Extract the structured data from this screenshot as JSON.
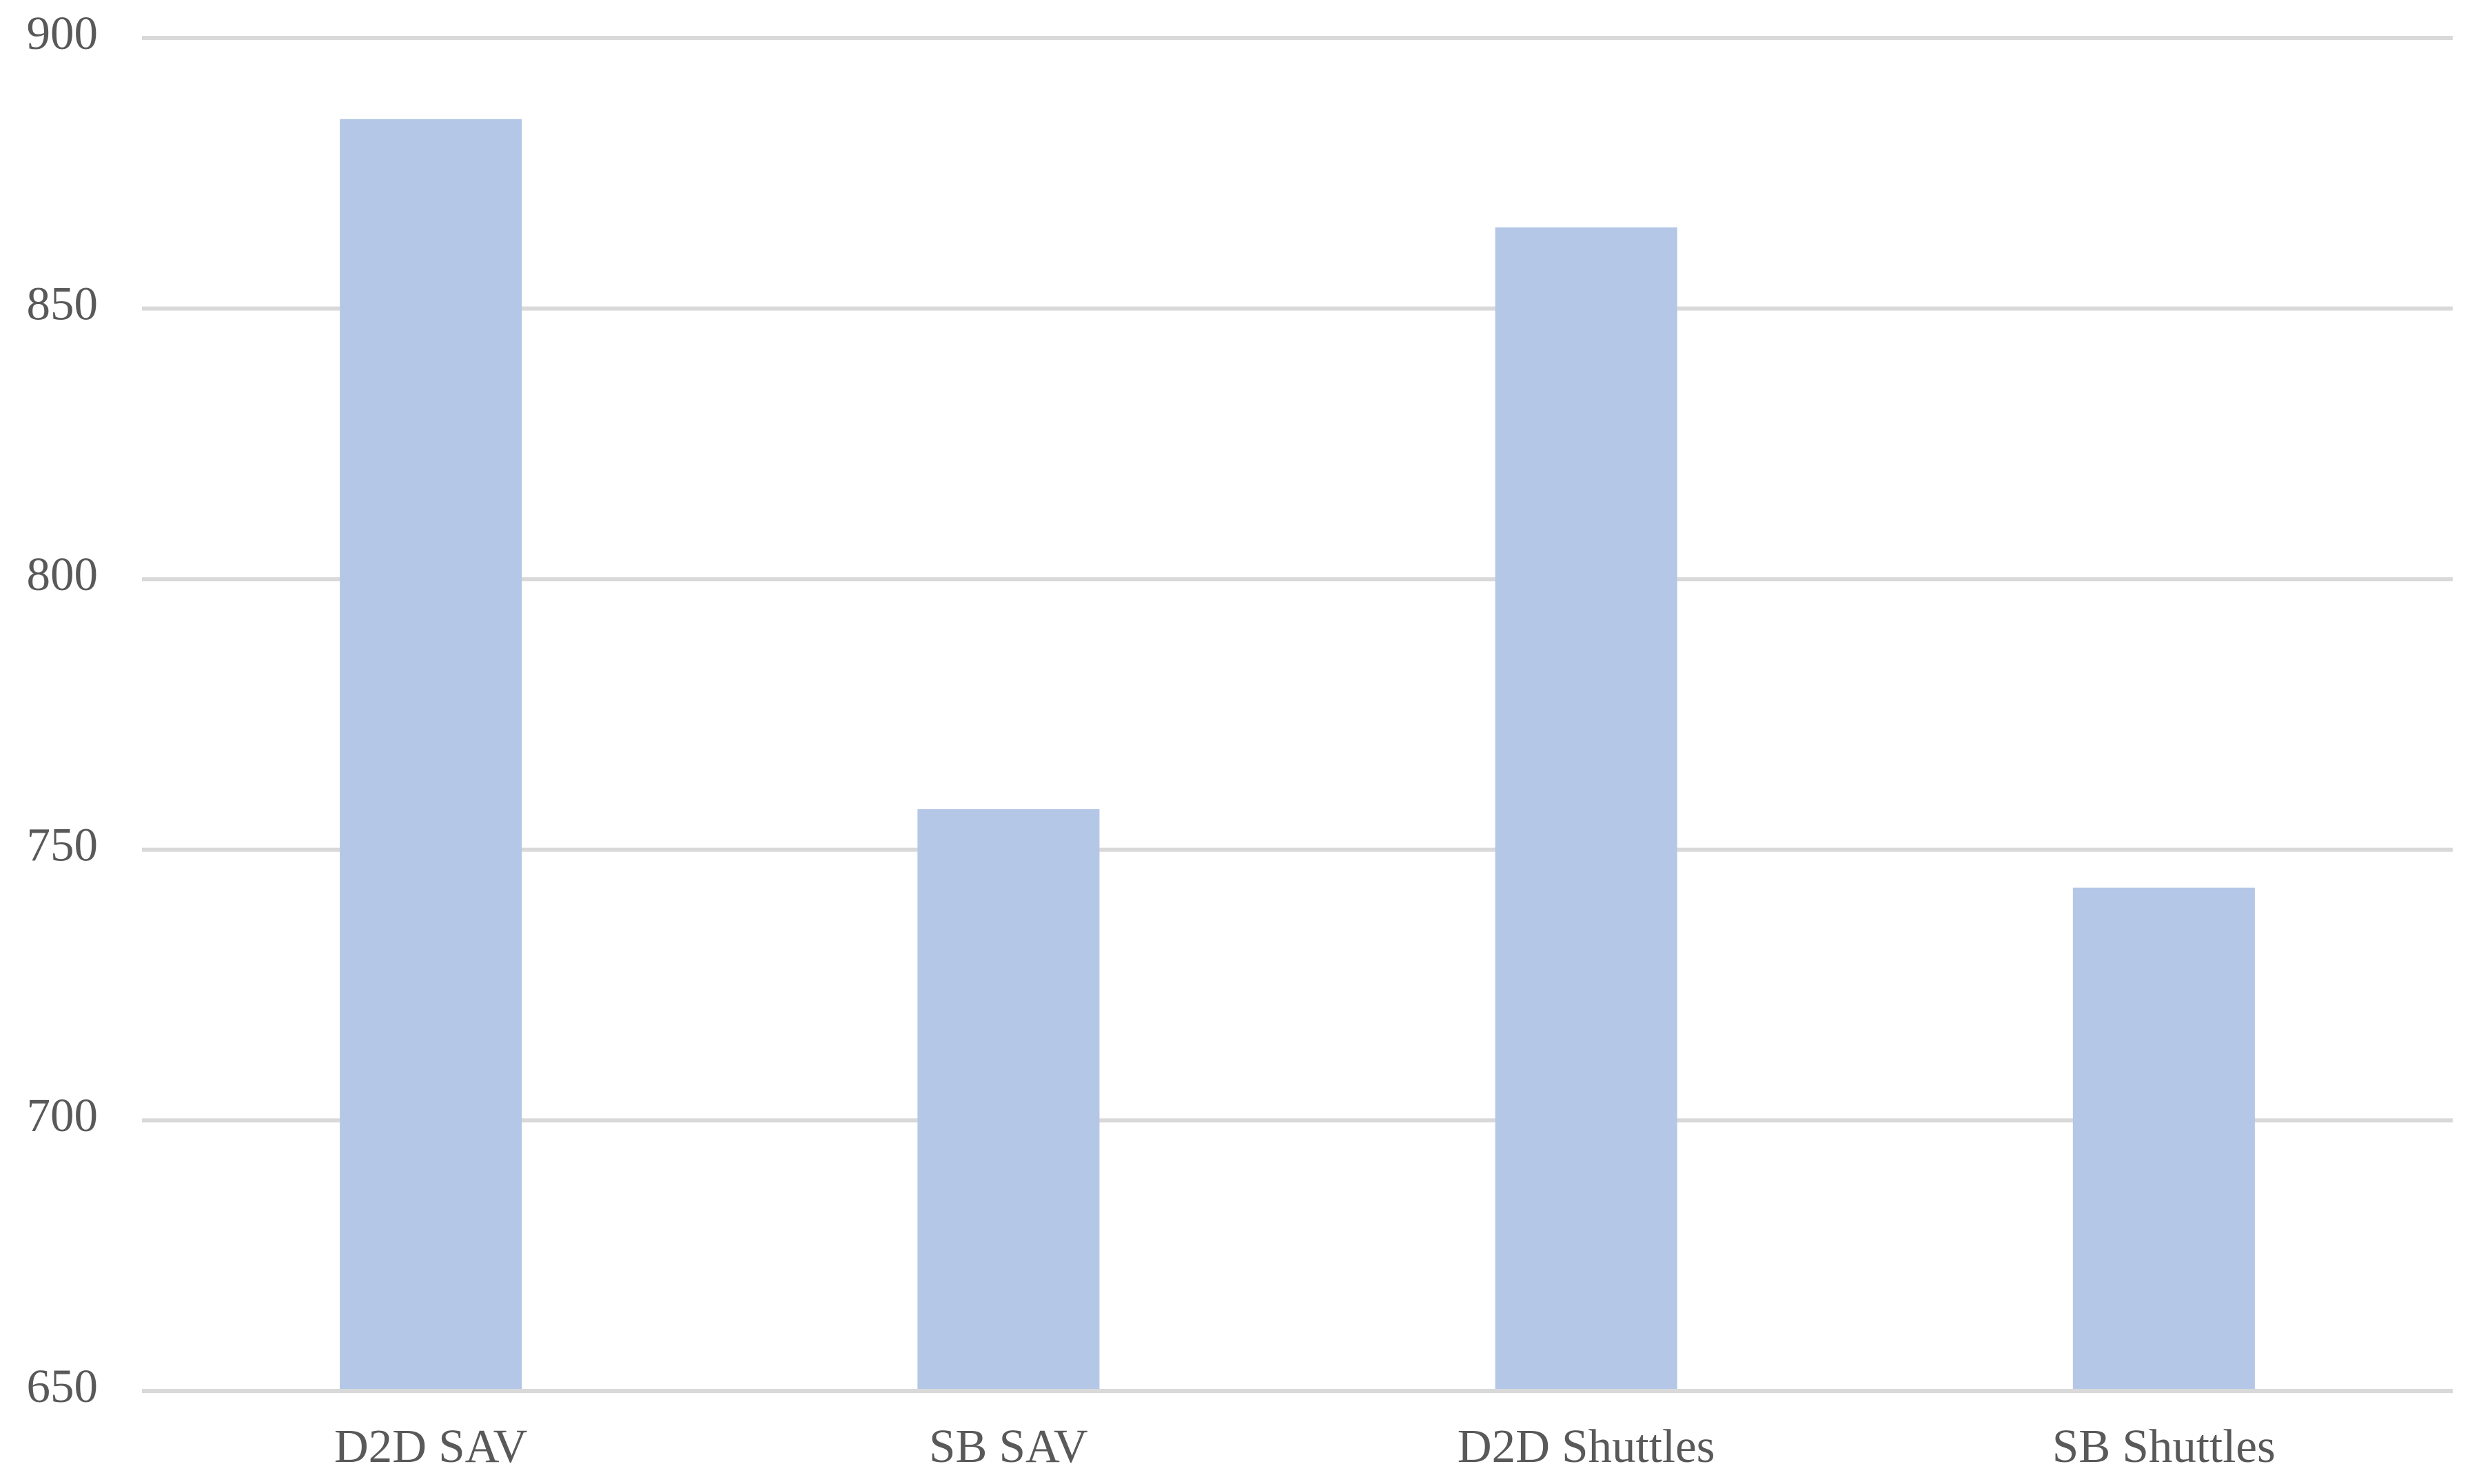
{
  "chart_data": {
    "type": "bar",
    "categories": [
      "D2D SAV",
      "SB SAV",
      "D2D Shuttles",
      "SB Shuttles"
    ],
    "values": [
      885,
      757.5,
      865,
      743
    ],
    "color": "#b4c7e7",
    "ylim": [
      650,
      900
    ],
    "yticks": [
      650,
      700,
      750,
      800,
      850,
      900
    ],
    "grid": true
  }
}
